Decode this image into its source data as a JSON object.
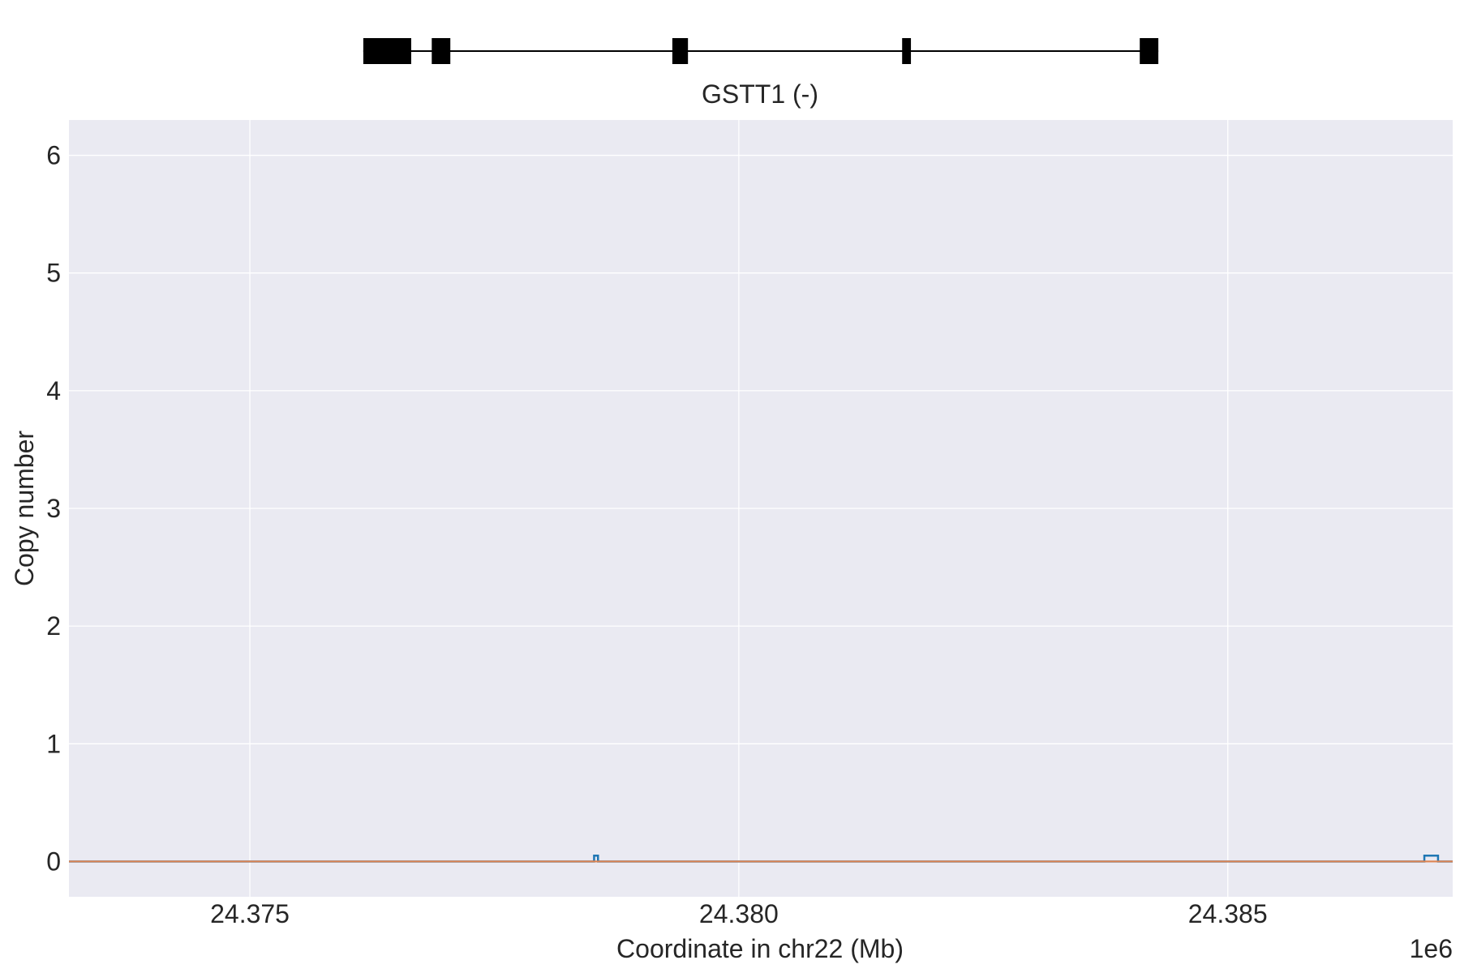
{
  "chart_data": {
    "type": "line",
    "gene": {
      "label": "GSTT1 (-)",
      "exons": [
        {
          "start": 24376160,
          "end": 24376650
        },
        {
          "start": 24376860,
          "end": 24377050
        },
        {
          "start": 24379320,
          "end": 24379480
        },
        {
          "start": 24381670,
          "end": 24381760
        },
        {
          "start": 24384100,
          "end": 24384290
        }
      ],
      "span": [
        24376160,
        24384290
      ]
    },
    "xlabel": "Coordinate in chr22 (Mb)",
    "ylabel": "Copy number",
    "x_offset_label": "1e6",
    "xlim": [
      24373150,
      24387300
    ],
    "ylim": [
      -0.3,
      6.3
    ],
    "xticks": [
      24375000,
      24380000,
      24385000
    ],
    "xtick_labels": [
      "24.375",
      "24.380",
      "24.385"
    ],
    "yticks": [
      0,
      1,
      2,
      3,
      4,
      5,
      6
    ],
    "ytick_labels": [
      "0",
      "1",
      "2",
      "3",
      "4",
      "5",
      "6"
    ],
    "grid": true,
    "series": [
      {
        "color": "#1f77b4",
        "style": "step",
        "x": [
          24373150,
          24378520,
          24378520,
          24378560,
          24378560,
          24387010,
          24387010,
          24387150,
          24387150,
          24387300
        ],
        "y": [
          0,
          0,
          0.05,
          0.05,
          0,
          0,
          0.05,
          0.05,
          0,
          0
        ]
      },
      {
        "color": "#dd8452",
        "style": "line",
        "x": [
          24373150,
          24387300
        ],
        "y": [
          0,
          0
        ]
      }
    ]
  }
}
